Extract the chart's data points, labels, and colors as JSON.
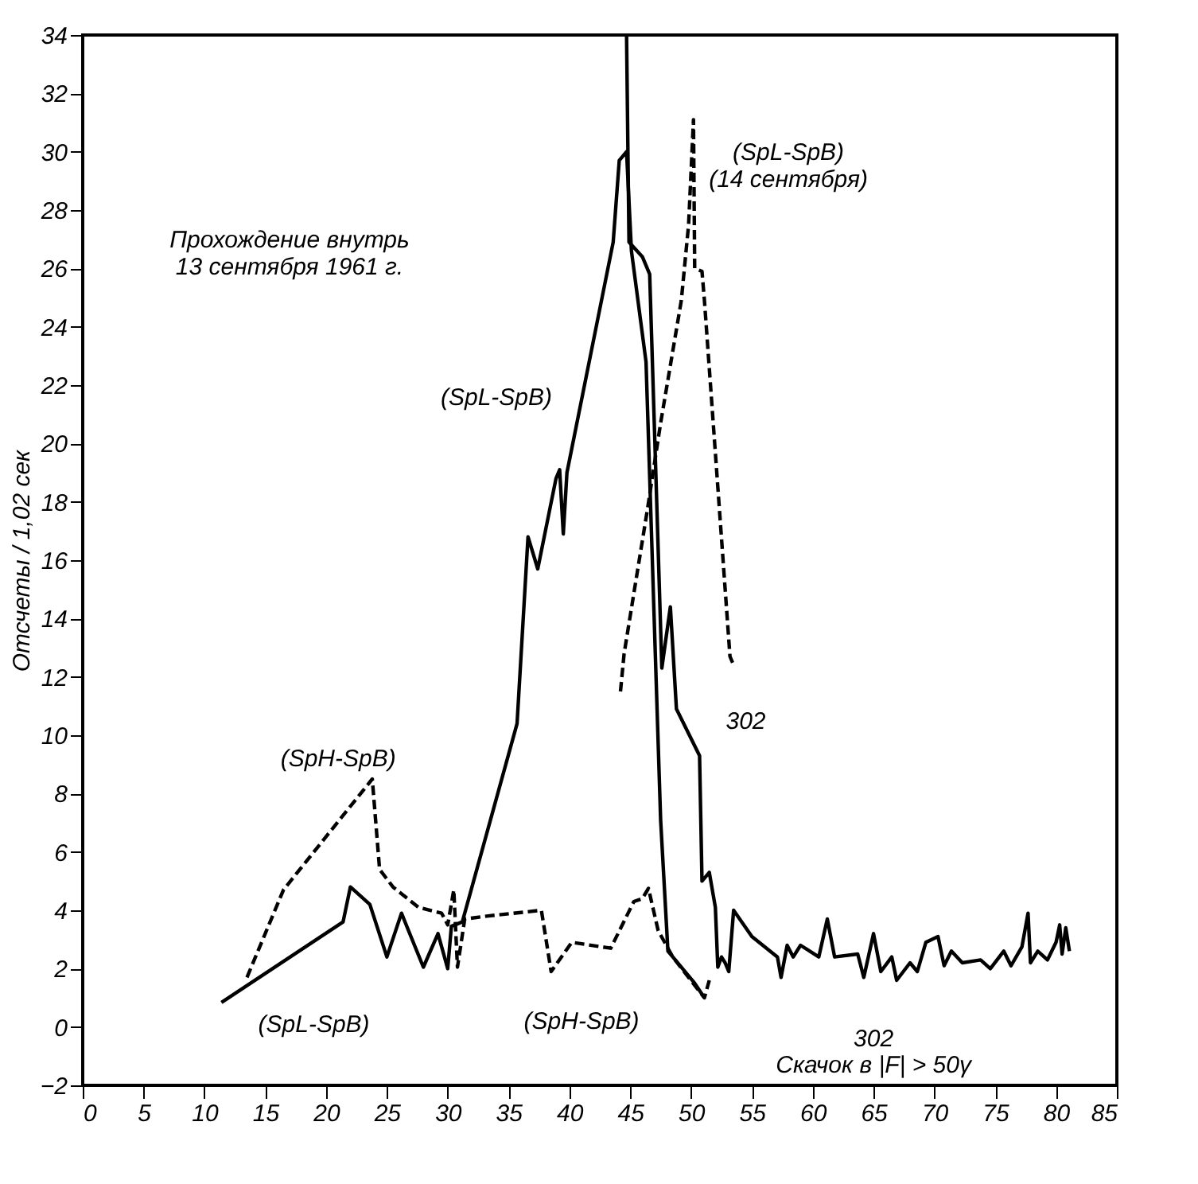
{
  "chart_data": {
    "type": "line",
    "ylabel": "Отсчеты / 1,02 сек",
    "xlim": [
      0,
      85
    ],
    "xticks": [
      0,
      5,
      10,
      15,
      20,
      25,
      30,
      35,
      40,
      45,
      50,
      55,
      60,
      65,
      70,
      75,
      80,
      85
    ],
    "ylim": [
      -2,
      34
    ],
    "yticks": [
      -2,
      0,
      2,
      4,
      6,
      8,
      10,
      12,
      14,
      16,
      18,
      20,
      22,
      24,
      26,
      28,
      30,
      32,
      34
    ],
    "grid": false,
    "marker": "none",
    "series": [
      {
        "color": "#000000",
        "line_style": "solid",
        "x": [
          11.4,
          21.4,
          22.0,
          23.6,
          25.0,
          26.2,
          28.0,
          29.2,
          30.0,
          30.3,
          31.2,
          35.7,
          36.6,
          37.4,
          38.9,
          39.2,
          39.5,
          39.8,
          43.6,
          44.1,
          44.7,
          45.1,
          46.3,
          47.1,
          47.5,
          48.1,
          48.5,
          50.3,
          51.1
        ],
        "values": [
          0.84,
          3.6,
          4.8,
          4.2,
          2.4,
          3.9,
          2.05,
          3.2,
          2.0,
          3.45,
          3.6,
          10.4,
          16.8,
          15.7,
          18.8,
          19.1,
          16.9,
          19.0,
          26.9,
          29.7,
          30.0,
          26.6,
          22.8,
          12.3,
          7.1,
          2.6,
          2.4,
          1.5,
          1.0
        ]
      },
      {
        "color": "#000000",
        "line_style": "solid",
        "x": [
          44.7,
          44.9,
          46.0,
          46.6,
          47.6,
          48.3,
          48.8,
          50.7,
          50.9,
          51.5,
          52.0,
          52.2,
          52.5,
          52.8,
          53.1,
          53.5,
          55.0,
          57.1,
          57.4,
          57.9,
          58.4,
          59.0,
          60.5,
          61.2,
          61.8,
          63.7,
          64.2,
          65.0,
          65.6,
          66.5,
          66.9,
          68.0,
          68.6,
          69.3,
          70.3,
          70.8,
          71.4,
          72.3,
          73.8,
          74.6,
          75.7,
          76.3,
          77.2,
          77.7,
          77.9,
          78.5,
          79.3,
          80.0,
          80.3,
          80.5,
          80.8,
          81.1
        ],
        "values": [
          34,
          26.9,
          26.4,
          25.8,
          12.3,
          14.4,
          10.9,
          9.3,
          5.0,
          5.3,
          4.1,
          2.05,
          2.4,
          2.2,
          1.9,
          4.0,
          3.1,
          2.4,
          1.7,
          2.8,
          2.4,
          2.8,
          2.4,
          3.7,
          2.4,
          2.5,
          1.7,
          3.2,
          1.9,
          2.4,
          1.6,
          2.2,
          1.9,
          2.9,
          3.1,
          2.1,
          2.6,
          2.2,
          2.3,
          2.0,
          2.6,
          2.1,
          2.75,
          3.9,
          2.2,
          2.6,
          2.3,
          2.9,
          3.5,
          2.5,
          3.4,
          2.6
        ]
      },
      {
        "color": "#000000",
        "line_style": "dashed",
        "x": [
          13.5,
          16.5,
          23.8,
          24.4,
          25.5,
          27.6,
          29.5,
          30.0,
          30.5,
          30.8,
          31.4,
          33.2,
          37.7,
          38.5,
          40.2,
          43.4,
          45.3,
          46.0,
          46.5,
          47.3,
          48.5,
          49.8,
          51.1,
          51.5
        ],
        "values": [
          1.7,
          4.7,
          8.5,
          5.4,
          4.8,
          4.1,
          3.9,
          3.5,
          4.7,
          2.05,
          3.7,
          3.8,
          4.0,
          1.9,
          2.9,
          2.7,
          4.3,
          4.4,
          4.75,
          3.3,
          2.4,
          1.7,
          1.0,
          1.6
        ]
      },
      {
        "color": "#000000",
        "line_style": "dashed",
        "x": [
          44.2,
          44.5,
          46.4,
          47.5,
          49.2,
          49.8,
          50.2,
          50.3,
          50.9,
          51.1,
          53.2,
          53.5
        ],
        "values": [
          11.5,
          12.8,
          17.7,
          20.7,
          24.9,
          27.5,
          31.1,
          26.0,
          25.9,
          24.9,
          12.7,
          12.4
        ]
      }
    ],
    "annotations": [
      "Прохождение внутрь\n13 сентября 1961 г.",
      "(SpL-SpB)",
      "(SpL-SpB)\n(14 сентября)",
      "(SpH-SpB)",
      "302",
      "(SpL-SpB)",
      "(SpH-SpB)",
      "302",
      "Скачок в |F| > 50γ"
    ]
  }
}
